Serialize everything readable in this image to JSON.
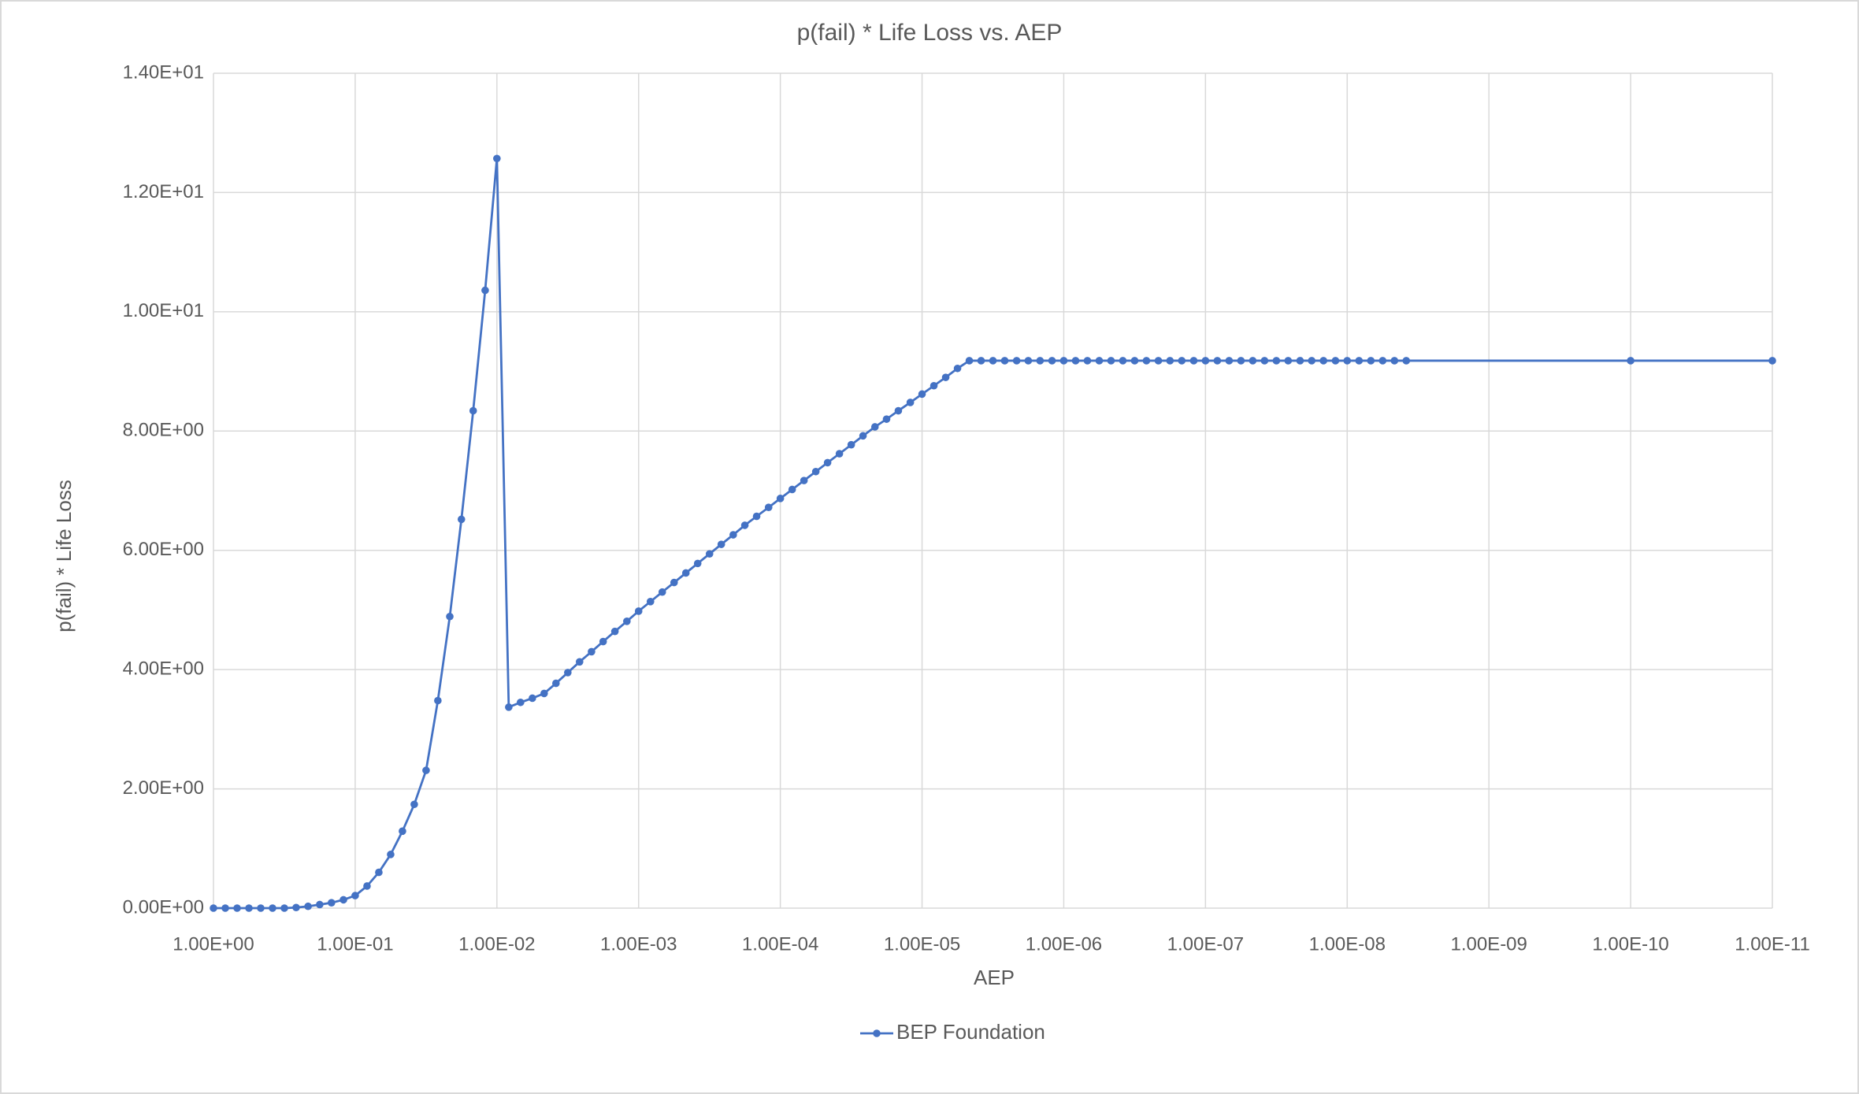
{
  "chart_data": {
    "type": "line",
    "title": "p(fail) * Life Loss vs. AEP",
    "x_label": "AEP",
    "y_label": "p(fail) * Life Loss",
    "x_scale": "log",
    "grid": true,
    "legend": "bottom",
    "xlim": [
      1,
      1e-11
    ],
    "ylim": [
      0,
      14
    ],
    "xticks": [
      {
        "value": 1,
        "label": "1.00E+00"
      },
      {
        "value": 0.1,
        "label": "1.00E-01"
      },
      {
        "value": 0.01,
        "label": "1.00E-02"
      },
      {
        "value": 0.001,
        "label": "1.00E-03"
      },
      {
        "value": 0.0001,
        "label": "1.00E-04"
      },
      {
        "value": 1e-05,
        "label": "1.00E-05"
      },
      {
        "value": 1e-06,
        "label": "1.00E-06"
      },
      {
        "value": 1e-07,
        "label": "1.00E-07"
      },
      {
        "value": 1e-08,
        "label": "1.00E-08"
      },
      {
        "value": 1e-09,
        "label": "1.00E-09"
      },
      {
        "value": 1e-10,
        "label": "1.00E-10"
      },
      {
        "value": 1e-11,
        "label": "1.00E-11"
      }
    ],
    "yticks": [
      {
        "value": 0,
        "label": "0.00E+00"
      },
      {
        "value": 2,
        "label": "2.00E+00"
      },
      {
        "value": 4,
        "label": "4.00E+00"
      },
      {
        "value": 6,
        "label": "6.00E+00"
      },
      {
        "value": 8,
        "label": "8.00E+00"
      },
      {
        "value": 10,
        "label": "1.00E+01"
      },
      {
        "value": 12,
        "label": "1.20E+01"
      },
      {
        "value": 14,
        "label": "1.40E+01"
      }
    ],
    "x": [
      1,
      0.825,
      0.681,
      0.562,
      0.464,
      0.383,
      0.316,
      0.261,
      0.215,
      0.178,
      0.147,
      0.121,
      0.1,
      0.0825,
      0.0681,
      0.0562,
      0.0464,
      0.0383,
      0.0316,
      0.0261,
      0.0215,
      0.0178,
      0.0147,
      0.0121,
      0.01,
      0.00825,
      0.00681,
      0.00562,
      0.00464,
      0.00383,
      0.00316,
      0.00261,
      0.00215,
      0.00178,
      0.00147,
      0.00121,
      0.001,
      0.000825,
      0.000681,
      0.000562,
      0.000464,
      0.000383,
      0.000316,
      0.000261,
      0.000215,
      0.000178,
      0.000147,
      0.000121,
      0.0001,
      8.25e-05,
      6.81e-05,
      5.62e-05,
      4.64e-05,
      3.83e-05,
      3.16e-05,
      2.61e-05,
      2.15e-05,
      1.78e-05,
      1.47e-05,
      1.21e-05,
      1e-05,
      8.25e-06,
      6.81e-06,
      5.62e-06,
      4.64e-06,
      3.83e-06,
      3.16e-06,
      2.61e-06,
      2.15e-06,
      1.78e-06,
      1.47e-06,
      1.21e-06,
      1e-06,
      8.25e-07,
      6.81e-07,
      5.62e-07,
      4.64e-07,
      3.83e-07,
      3.16e-07,
      2.61e-07,
      2.15e-07,
      1.78e-07,
      1.47e-07,
      1.21e-07,
      1e-07,
      8.25e-08,
      6.81e-08,
      5.62e-08,
      4.64e-08,
      3.83e-08,
      3.16e-08,
      2.61e-08,
      2.15e-08,
      1.78e-08,
      1.47e-08,
      1.21e-08,
      1e-08,
      8.25e-09,
      6.81e-09,
      5.62e-09,
      4.64e-09,
      3.83e-09,
      1e-10,
      1e-11
    ],
    "series": [
      {
        "name": "BEP Foundation",
        "color": "#4472c4",
        "values": [
          0,
          0,
          0,
          0,
          0,
          0,
          0,
          0.01,
          0.03,
          0.06,
          0.09,
          0.14,
          0.21,
          0.37,
          0.6,
          0.9,
          1.29,
          1.74,
          2.31,
          3.48,
          4.89,
          6.52,
          8.34,
          10.36,
          12.57,
          3.37,
          3.45,
          3.52,
          3.6,
          3.77,
          3.95,
          4.13,
          4.3,
          4.47,
          4.64,
          4.81,
          4.98,
          5.14,
          5.3,
          5.46,
          5.62,
          5.78,
          5.94,
          6.1,
          6.26,
          6.42,
          6.57,
          6.72,
          6.87,
          7.02,
          7.17,
          7.32,
          7.47,
          7.62,
          7.77,
          7.92,
          8.07,
          8.2,
          8.34,
          8.48,
          8.62,
          8.76,
          8.9,
          9.05,
          9.18,
          9.18,
          9.18,
          9.18,
          9.18,
          9.18,
          9.18,
          9.18,
          9.18,
          9.18,
          9.18,
          9.18,
          9.18,
          9.18,
          9.18,
          9.18,
          9.18,
          9.18,
          9.18,
          9.18,
          9.18,
          9.18,
          9.18,
          9.18,
          9.18,
          9.18,
          9.18,
          9.18,
          9.18,
          9.18,
          9.18,
          9.18,
          9.18,
          9.18,
          9.18,
          9.18,
          9.18,
          9.18,
          9.18,
          9.18
        ]
      }
    ]
  }
}
